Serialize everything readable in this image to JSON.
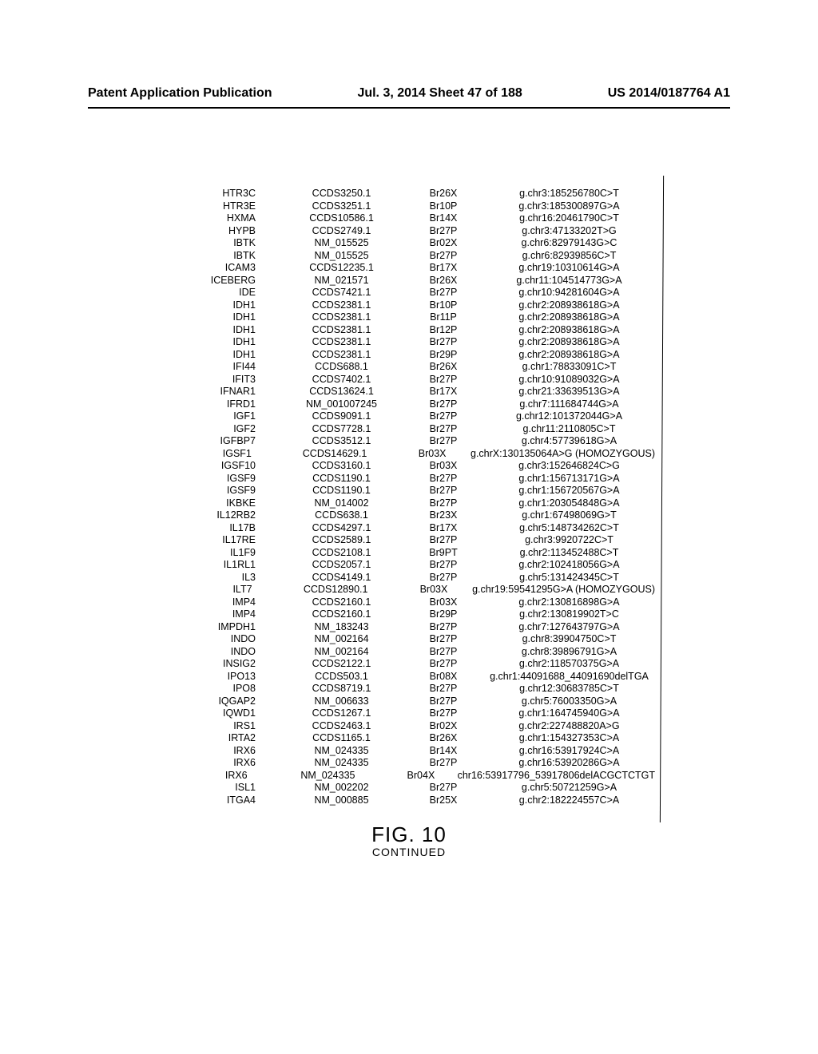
{
  "header": {
    "left": "Patent Application Publication",
    "center": "Jul. 3, 2014  Sheet 47 of 188",
    "right": "US 2014/0187764 A1"
  },
  "figure": {
    "label": "FIG. 10",
    "sub": "CONTINUED"
  },
  "rows": [
    {
      "gene": "HTR3C",
      "acc": "CCDS3250.1",
      "sample": "Br26X",
      "var": "g.chr3:185256780C>T"
    },
    {
      "gene": "HTR3E",
      "acc": "CCDS3251.1",
      "sample": "Br10P",
      "var": "g.chr3:185300897G>A"
    },
    {
      "gene": "HXMA",
      "acc": "CCDS10586.1",
      "sample": "Br14X",
      "var": "g.chr16:20461790C>T"
    },
    {
      "gene": "HYPB",
      "acc": "CCDS2749.1",
      "sample": "Br27P",
      "var": "g.chr3:47133202T>G"
    },
    {
      "gene": "IBTK",
      "acc": "NM_015525",
      "sample": "Br02X",
      "var": "g.chr6:82979143G>C"
    },
    {
      "gene": "IBTK",
      "acc": "NM_015525",
      "sample": "Br27P",
      "var": "g.chr6:82939856C>T"
    },
    {
      "gene": "ICAM3",
      "acc": "CCDS12235.1",
      "sample": "Br17X",
      "var": "g.chr19:10310614G>A"
    },
    {
      "gene": "ICEBERG",
      "acc": "NM_021571",
      "sample": "Br26X",
      "var": "g.chr11:104514773G>A"
    },
    {
      "gene": "IDE",
      "acc": "CCDS7421.1",
      "sample": "Br27P",
      "var": "g.chr10:94281604G>A"
    },
    {
      "gene": "IDH1",
      "acc": "CCDS2381.1",
      "sample": "Br10P",
      "var": "g.chr2:208938618G>A"
    },
    {
      "gene": "IDH1",
      "acc": "CCDS2381.1",
      "sample": "Br11P",
      "var": "g.chr2:208938618G>A"
    },
    {
      "gene": "IDH1",
      "acc": "CCDS2381.1",
      "sample": "Br12P",
      "var": "g.chr2:208938618G>A"
    },
    {
      "gene": "IDH1",
      "acc": "CCDS2381.1",
      "sample": "Br27P",
      "var": "g.chr2:208938618G>A"
    },
    {
      "gene": "IDH1",
      "acc": "CCDS2381.1",
      "sample": "Br29P",
      "var": "g.chr2:208938618G>A"
    },
    {
      "gene": "IFI44",
      "acc": "CCDS688.1",
      "sample": "Br26X",
      "var": "g.chr1:78833091C>T"
    },
    {
      "gene": "IFIT3",
      "acc": "CCDS7402.1",
      "sample": "Br27P",
      "var": "g.chr10:91089032G>A"
    },
    {
      "gene": "IFNAR1",
      "acc": "CCDS13624.1",
      "sample": "Br17X",
      "var": "g.chr21:33639513G>A"
    },
    {
      "gene": "IFRD1",
      "acc": "NM_001007245",
      "sample": "Br27P",
      "var": "g.chr7:111684744G>A"
    },
    {
      "gene": "IGF1",
      "acc": "CCDS9091.1",
      "sample": "Br27P",
      "var": "g.chr12:101372044G>A"
    },
    {
      "gene": "IGF2",
      "acc": "CCDS7728.1",
      "sample": "Br27P",
      "var": "g.chr11:2110805C>T"
    },
    {
      "gene": "IGFBP7",
      "acc": "CCDS3512.1",
      "sample": "Br27P",
      "var": "g.chr4:57739618G>A"
    },
    {
      "gene": "IGSF1",
      "acc": "CCDS14629.1",
      "sample": "Br03X",
      "var": "g.chrX:130135064A>G (HOMOZYGOUS)"
    },
    {
      "gene": "IGSF10",
      "acc": "CCDS3160.1",
      "sample": "Br03X",
      "var": "g.chr3:152646824C>G"
    },
    {
      "gene": "IGSF9",
      "acc": "CCDS1190.1",
      "sample": "Br27P",
      "var": "g.chr1:156713171G>A"
    },
    {
      "gene": "IGSF9",
      "acc": "CCDS1190.1",
      "sample": "Br27P",
      "var": "g.chr1:156720567G>A"
    },
    {
      "gene": "IKBKE",
      "acc": "NM_014002",
      "sample": "Br27P",
      "var": "g.chr1:203054848G>A"
    },
    {
      "gene": "IL12RB2",
      "acc": "CCDS638.1",
      "sample": "Br23X",
      "var": "g.chr1:67498069G>T"
    },
    {
      "gene": "IL17B",
      "acc": "CCDS4297.1",
      "sample": "Br17X",
      "var": "g.chr5:148734262C>T"
    },
    {
      "gene": "IL17RE",
      "acc": "CCDS2589.1",
      "sample": "Br27P",
      "var": "g.chr3:9920722C>T"
    },
    {
      "gene": "IL1F9",
      "acc": "CCDS2108.1",
      "sample": "Br9PT",
      "var": "g.chr2:113452488C>T"
    },
    {
      "gene": "IL1RL1",
      "acc": "CCDS2057.1",
      "sample": "Br27P",
      "var": "g.chr2:102418056G>A"
    },
    {
      "gene": "IL3",
      "acc": "CCDS4149.1",
      "sample": "Br27P",
      "var": "g.chr5:131424345C>T"
    },
    {
      "gene": "ILT7",
      "acc": "CCDS12890.1",
      "sample": "Br03X",
      "var": "g.chr19:59541295G>A (HOMOZYGOUS)"
    },
    {
      "gene": "IMP4",
      "acc": "CCDS2160.1",
      "sample": "Br03X",
      "var": "g.chr2:130816898G>A"
    },
    {
      "gene": "IMP4",
      "acc": "CCDS2160.1",
      "sample": "Br29P",
      "var": "g.chr2:130819902T>C"
    },
    {
      "gene": "IMPDH1",
      "acc": "NM_183243",
      "sample": "Br27P",
      "var": "g.chr7:127643797G>A"
    },
    {
      "gene": "INDO",
      "acc": "NM_002164",
      "sample": "Br27P",
      "var": "g.chr8:39904750C>T"
    },
    {
      "gene": "INDO",
      "acc": "NM_002164",
      "sample": "Br27P",
      "var": "g.chr8:39896791G>A"
    },
    {
      "gene": "INSIG2",
      "acc": "CCDS2122.1",
      "sample": "Br27P",
      "var": "g.chr2:118570375G>A"
    },
    {
      "gene": "IPO13",
      "acc": "CCDS503.1",
      "sample": "Br08X",
      "var": "g.chr1:44091688_44091690delTGA"
    },
    {
      "gene": "IPO8",
      "acc": "CCDS8719.1",
      "sample": "Br27P",
      "var": "g.chr12:30683785C>T"
    },
    {
      "gene": "IQGAP2",
      "acc": "NM_006633",
      "sample": "Br27P",
      "var": "g.chr5:76003350G>A"
    },
    {
      "gene": "IQWD1",
      "acc": "CCDS1267.1",
      "sample": "Br27P",
      "var": "g.chr1:164745940G>A"
    },
    {
      "gene": "IRS1",
      "acc": "CCDS2463.1",
      "sample": "Br02X",
      "var": "g.chr2:227488820A>G"
    },
    {
      "gene": "IRTA2",
      "acc": "CCDS1165.1",
      "sample": "Br26X",
      "var": "g.chr1:154327353C>A"
    },
    {
      "gene": "IRX6",
      "acc": "NM_024335",
      "sample": "Br14X",
      "var": "g.chr16:53917924C>A"
    },
    {
      "gene": "IRX6",
      "acc": "NM_024335",
      "sample": "Br27P",
      "var": "g.chr16:53920286G>A"
    },
    {
      "gene": "IRX6",
      "acc": "NM_024335",
      "sample": "Br04X",
      "var": "chr16:53917796_53917806delACGCTCTGT"
    },
    {
      "gene": "ISL1",
      "acc": "NM_002202",
      "sample": "Br27P",
      "var": "g.chr5:50721259G>A"
    },
    {
      "gene": "ITGA4",
      "acc": "NM_000885",
      "sample": "Br25X",
      "var": "g.chr2:182224557C>A"
    }
  ]
}
